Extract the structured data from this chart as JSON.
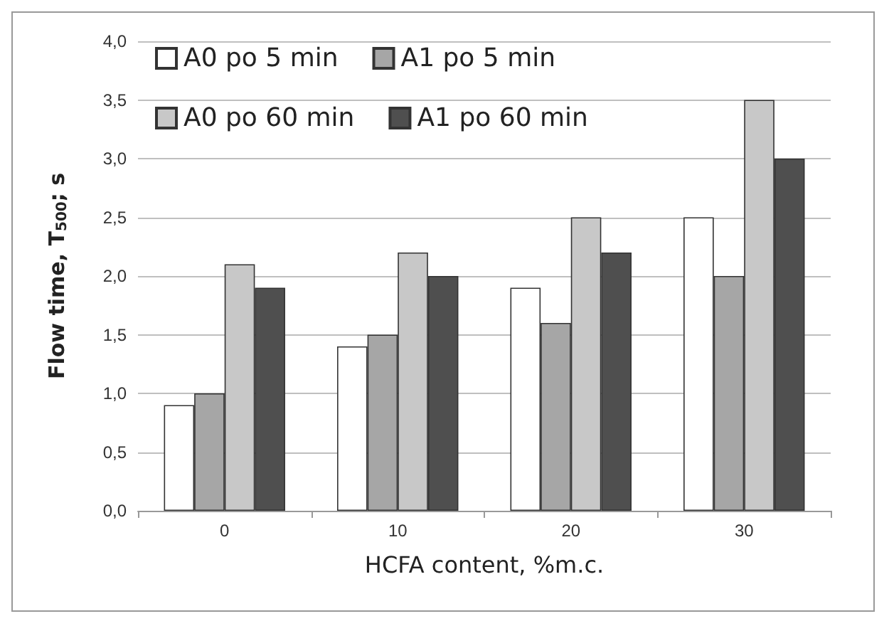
{
  "chart_data": {
    "type": "bar",
    "xlabel": "HCFA content, %m.c.",
    "ylabel": "Flow time, T$_{500}$; s",
    "categories": [
      "0",
      "10",
      "20",
      "30"
    ],
    "series": [
      {
        "name": "A0 po 5 min",
        "color": "#ffffff",
        "values": [
          0.9,
          1.4,
          1.9,
          2.5
        ]
      },
      {
        "name": "A1 po 5 min",
        "color": "#a6a6a6",
        "values": [
          1.0,
          1.5,
          1.6,
          2.0
        ]
      },
      {
        "name": "A0 po 60 min",
        "color": "#c8c8c8",
        "values": [
          2.1,
          2.2,
          2.5,
          3.5
        ]
      },
      {
        "name": "A1 po 60 min",
        "color": "#4f4f4f",
        "values": [
          1.9,
          2.0,
          2.2,
          3.0
        ]
      }
    ],
    "ylim": [
      0,
      4
    ],
    "yticks": [
      {
        "value": 0,
        "label": "0,0"
      },
      {
        "value": 0.5,
        "label": "0,5"
      },
      {
        "value": 1,
        "label": "1,0"
      },
      {
        "value": 1.5,
        "label": "1,5"
      },
      {
        "value": 2,
        "label": "2,0"
      },
      {
        "value": 2.5,
        "label": "2,5"
      },
      {
        "value": 3,
        "label": "3,0"
      },
      {
        "value": 3.5,
        "label": "3,5"
      },
      {
        "value": 4,
        "label": "4,0"
      }
    ],
    "grid": "y",
    "legend": "top left"
  }
}
